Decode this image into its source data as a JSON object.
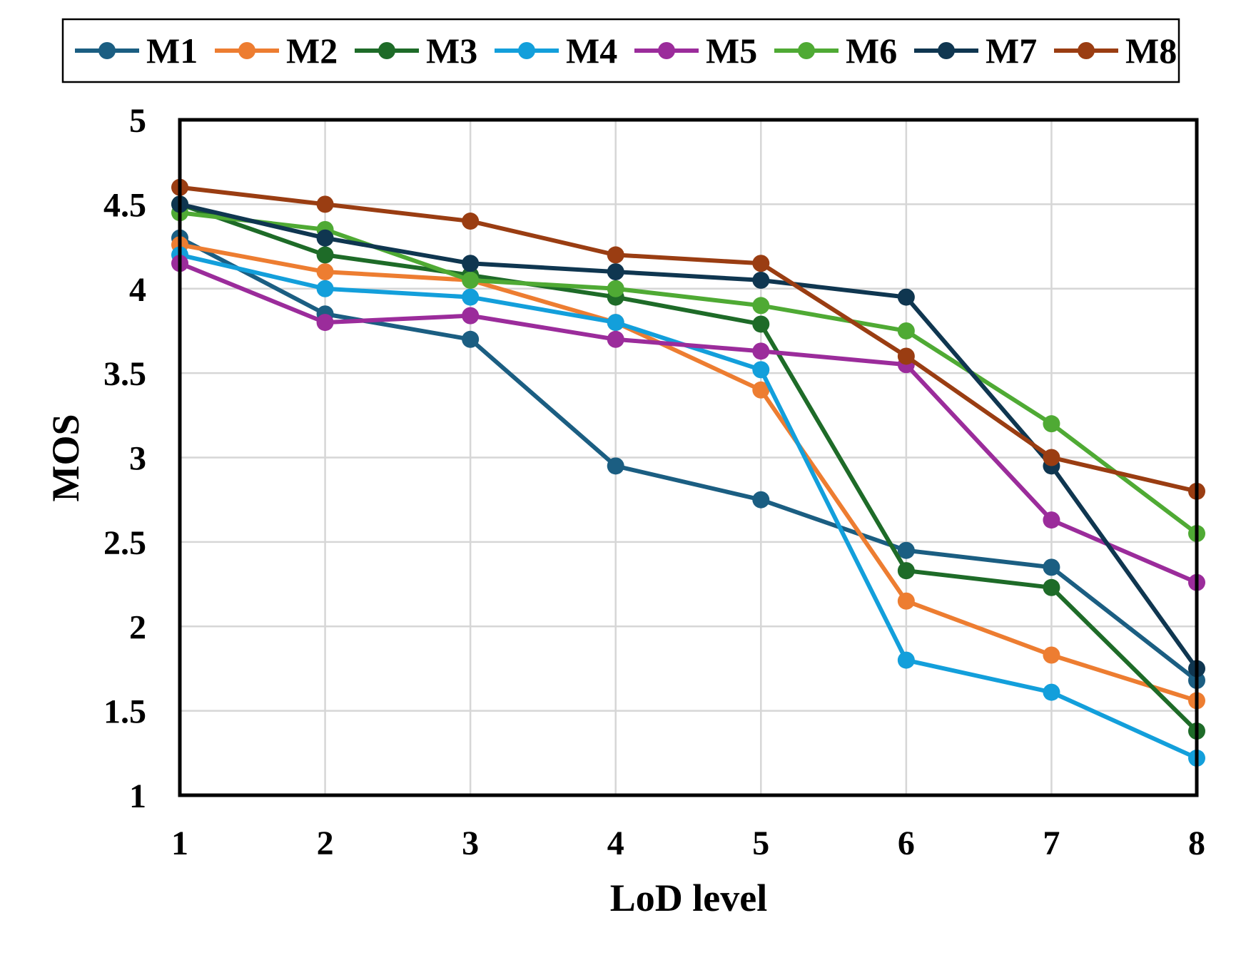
{
  "chart_data": {
    "type": "line",
    "title": "",
    "xlabel": "LoD level",
    "ylabel": "MOS",
    "x": [
      1,
      2,
      3,
      4,
      5,
      6,
      7,
      8
    ],
    "x_tick_labels": [
      "1",
      "2",
      "3",
      "4",
      "5",
      "6",
      "7",
      "8"
    ],
    "y_tick_labels": [
      "1",
      "1.5",
      "2",
      "2.5",
      "3",
      "3.5",
      "4",
      "4.5",
      "5"
    ],
    "y_ticks": [
      1,
      1.5,
      2,
      2.5,
      3,
      3.5,
      4,
      4.5,
      5
    ],
    "xlim": [
      1,
      8
    ],
    "ylim": [
      1,
      5
    ],
    "grid": true,
    "legend_position": "top",
    "series": [
      {
        "name": "M1",
        "color": "#1b5e82",
        "values": [
          4.3,
          3.85,
          3.7,
          2.95,
          2.75,
          2.45,
          2.35,
          1.68
        ]
      },
      {
        "name": "M2",
        "color": "#ed7d31",
        "values": [
          4.26,
          4.1,
          4.05,
          3.8,
          3.4,
          2.15,
          1.83,
          1.56
        ]
      },
      {
        "name": "M3",
        "color": "#1e6b28",
        "values": [
          4.5,
          4.2,
          4.08,
          3.95,
          3.79,
          2.33,
          2.23,
          1.38
        ]
      },
      {
        "name": "M4",
        "color": "#139fdb",
        "values": [
          4.2,
          4.0,
          3.95,
          3.8,
          3.52,
          1.8,
          1.61,
          1.22
        ]
      },
      {
        "name": "M5",
        "color": "#9b2c9b",
        "values": [
          4.15,
          3.8,
          3.84,
          3.7,
          3.63,
          3.55,
          2.63,
          2.26
        ]
      },
      {
        "name": "M6",
        "color": "#4faa34",
        "values": [
          4.45,
          4.35,
          4.05,
          4.0,
          3.9,
          3.75,
          3.2,
          2.55
        ]
      },
      {
        "name": "M7",
        "color": "#0f3650",
        "values": [
          4.5,
          4.3,
          4.15,
          4.1,
          4.05,
          3.95,
          2.95,
          1.75
        ]
      },
      {
        "name": "M8",
        "color": "#9a3d12",
        "values": [
          4.6,
          4.5,
          4.4,
          4.2,
          4.15,
          3.6,
          3.0,
          2.8
        ]
      }
    ]
  }
}
